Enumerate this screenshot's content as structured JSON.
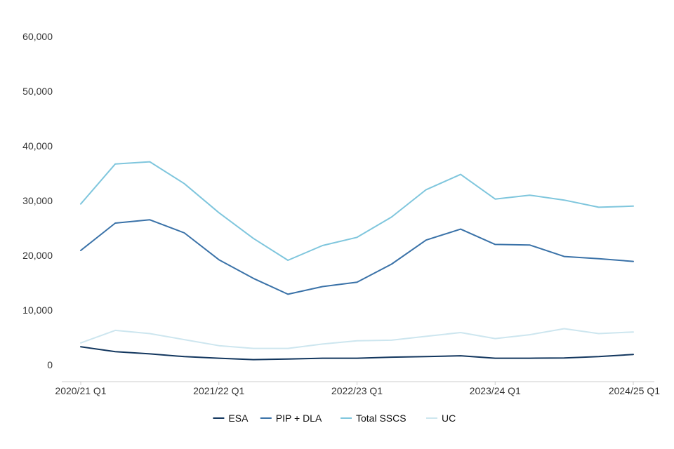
{
  "chart_data": {
    "type": "line",
    "title": "",
    "xlabel": "",
    "ylabel": "",
    "ylim": [
      0,
      60000
    ],
    "y_ticks": [
      0,
      10000,
      20000,
      30000,
      40000,
      50000,
      60000
    ],
    "y_tick_labels": [
      "0",
      "10,000",
      "20,000",
      "30,000",
      "40,000",
      "50,000",
      "60,000"
    ],
    "x": [
      "2020/21 Q1",
      "2020/21 Q2",
      "2020/21 Q3",
      "2020/21 Q4",
      "2021/22 Q1",
      "2021/22 Q2",
      "2021/22 Q3",
      "2021/22 Q4",
      "2022/23 Q1",
      "2022/23 Q2",
      "2022/23 Q3",
      "2022/23 Q4",
      "2023/24 Q1",
      "2023/24 Q2",
      "2023/24 Q3",
      "2023/24 Q4",
      "2024/25 Q1"
    ],
    "x_tick_labels": [
      "2020/21 Q1",
      "2021/22 Q1",
      "2022/23 Q1",
      "2023/24 Q1",
      "2024/25 Q1"
    ],
    "grid": false,
    "legend_position": "bottom",
    "series": [
      {
        "name": "ESA",
        "color": "#12365e",
        "values": [
          3300,
          2400,
          2000,
          1500,
          1200,
          950,
          1050,
          1200,
          1200,
          1400,
          1500,
          1650,
          1200,
          1200,
          1250,
          1500,
          1900
        ]
      },
      {
        "name": "PIP + DLA",
        "color": "#3a72a8",
        "values": [
          20900,
          25900,
          26500,
          24100,
          19200,
          15800,
          12900,
          14300,
          15100,
          18400,
          22800,
          24800,
          22000,
          21900,
          19800,
          19400,
          18900
        ]
      },
      {
        "name": "Total SSCS",
        "color": "#7fc6dd",
        "values": [
          29400,
          36700,
          37100,
          33100,
          27800,
          23100,
          19100,
          21800,
          23300,
          27000,
          32000,
          34800,
          30300,
          31000,
          30100,
          28800,
          29000
        ]
      },
      {
        "name": "UC",
        "color": "#cde6ef",
        "values": [
          4000,
          6300,
          5700,
          4600,
          3500,
          3000,
          3000,
          3800,
          4400,
          4500,
          5200,
          5900,
          4800,
          5500,
          6600,
          5700,
          6000
        ]
      }
    ]
  }
}
